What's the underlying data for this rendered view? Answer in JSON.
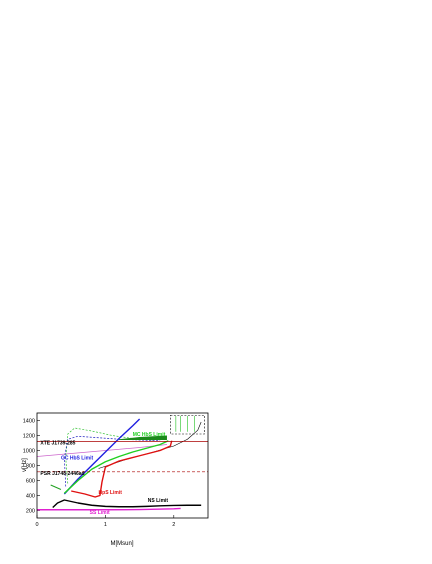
{
  "chart_data": {
    "type": "line",
    "title": "",
    "xlabel": "M[Msun]",
    "ylabel": "ν[Hz]",
    "xlim": [
      0,
      2.5
    ],
    "ylim": [
      100,
      1500
    ],
    "xticks": [
      0,
      1,
      2
    ],
    "yticks": [
      200,
      400,
      600,
      800,
      1000,
      1200,
      1400
    ],
    "grid": false,
    "legend": "none",
    "reference_lines": [
      {
        "name": "XTE J1739-285",
        "y": 1122,
        "style": "solid",
        "color": "#aa0000"
      },
      {
        "name": "PSR J1748-2446ad",
        "y": 716,
        "style": "dashed",
        "color": "#aa0000"
      }
    ],
    "series": [
      {
        "name": "NS Limit",
        "color": "#000000",
        "style": "solid",
        "label_pos": [
          1.62,
          315
        ],
        "x": [
          0.23,
          0.3,
          0.4,
          0.6,
          0.8,
          1.0,
          1.2,
          1.4,
          1.6,
          1.8,
          2.0,
          2.2,
          2.4
        ],
        "y": [
          240,
          300,
          340,
          300,
          270,
          255,
          250,
          250,
          255,
          262,
          268,
          270,
          270
        ]
      },
      {
        "name": "HpS Limit",
        "color": "#e01010",
        "style": "solid",
        "label_pos": [
          0.9,
          420
        ],
        "x": [
          0.5,
          0.7,
          0.85,
          0.92,
          0.95,
          1.0,
          1.2,
          1.5,
          1.8,
          1.95,
          1.97
        ],
        "y": [
          460,
          420,
          380,
          400,
          580,
          780,
          860,
          930,
          1000,
          1060,
          1130
        ]
      },
      {
        "name": "GC HbS Limit",
        "color": "#2020e0",
        "style": "solid",
        "label_pos": [
          0.35,
          880
        ],
        "x": [
          0.4,
          0.6,
          0.8,
          1.0,
          1.2,
          1.4,
          1.5
        ],
        "y": [
          420,
          620,
          800,
          980,
          1160,
          1330,
          1420
        ]
      },
      {
        "name": "MC HbS Limit",
        "color": "#20d020",
        "style": "solid",
        "label_pos": [
          1.4,
          1195
        ],
        "x": [
          0.4,
          0.6,
          0.8,
          1.0,
          1.2,
          1.4,
          1.6,
          1.8,
          1.92
        ],
        "y": [
          430,
          600,
          750,
          850,
          920,
          980,
          1030,
          1080,
          1130
        ]
      },
      {
        "name": "SS Limit",
        "color": "#e020d0",
        "style": "solid",
        "label_pos": [
          0.77,
          155
        ],
        "x": [
          0,
          0.5,
          1.0,
          1.5,
          2.0,
          2.1
        ],
        "y": [
          210,
          210,
          210,
          212,
          222,
          228
        ]
      }
    ],
    "annotations": [
      "XTE J1739-285",
      "PSR J1748-2446ad"
    ]
  }
}
